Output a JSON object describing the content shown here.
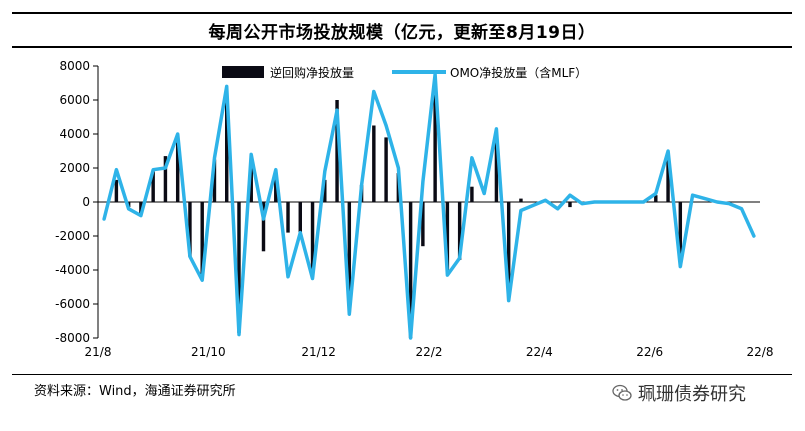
{
  "title": "每周公开市场投放规模（亿元，更新至8月19日）",
  "source_text": "资料来源：Wind，海通证券研究所",
  "watermark_text": "珮珊债券研究",
  "watermark_icon": "wechat-icon",
  "colors": {
    "bar": "#0a0a14",
    "line": "#2eb3e8",
    "axis": "#000000"
  },
  "chart_data": {
    "type": "bar+line",
    "title": "每周公开市场投放规模（亿元，更新至8月19日）",
    "xlabel": "",
    "ylabel": "",
    "ylim": [
      -8000,
      8000
    ],
    "yticks": [
      8000,
      6000,
      4000,
      2000,
      0,
      -2000,
      -4000,
      -6000,
      -8000
    ],
    "x_tick_labels": [
      "21/8",
      "21/10",
      "21/12",
      "22/2",
      "22/4",
      "22/6",
      "22/8"
    ],
    "grid": false,
    "legend_position": "top",
    "series": [
      {
        "name": "逆回购净投放量",
        "kind": "bar",
        "values": [
          0,
          1300,
          -300,
          -700,
          1800,
          2700,
          3500,
          -3200,
          -4400,
          2500,
          6600,
          -7700,
          2500,
          -2900,
          1400,
          -1800,
          -1800,
          -4400,
          1300,
          6000,
          -6500,
          1000,
          4500,
          3800,
          1700,
          -8000,
          -2600,
          7000,
          -4200,
          -3400,
          900,
          0,
          4000,
          -5800,
          200,
          0,
          0,
          0,
          -300,
          0,
          0,
          0,
          0,
          0,
          0,
          400,
          2800,
          -3800,
          0,
          0,
          0,
          0,
          0,
          0
        ]
      },
      {
        "name": "OMO净投放量（含MLF）",
        "kind": "line",
        "values": [
          -1000,
          1900,
          -400,
          -800,
          1900,
          2000,
          4000,
          -3200,
          -4600,
          2600,
          6800,
          -7800,
          2800,
          -1000,
          1900,
          -4400,
          -1800,
          -4500,
          1800,
          5400,
          -6600,
          1000,
          6500,
          4500,
          2000,
          -8000,
          1200,
          7500,
          -4300,
          -3300,
          2600,
          500,
          4300,
          -5800,
          -500,
          -200,
          100,
          -400,
          400,
          -100,
          0,
          0,
          0,
          0,
          0,
          500,
          3000,
          -3800,
          400,
          200,
          0,
          -100,
          -400,
          -2000
        ]
      }
    ]
  }
}
